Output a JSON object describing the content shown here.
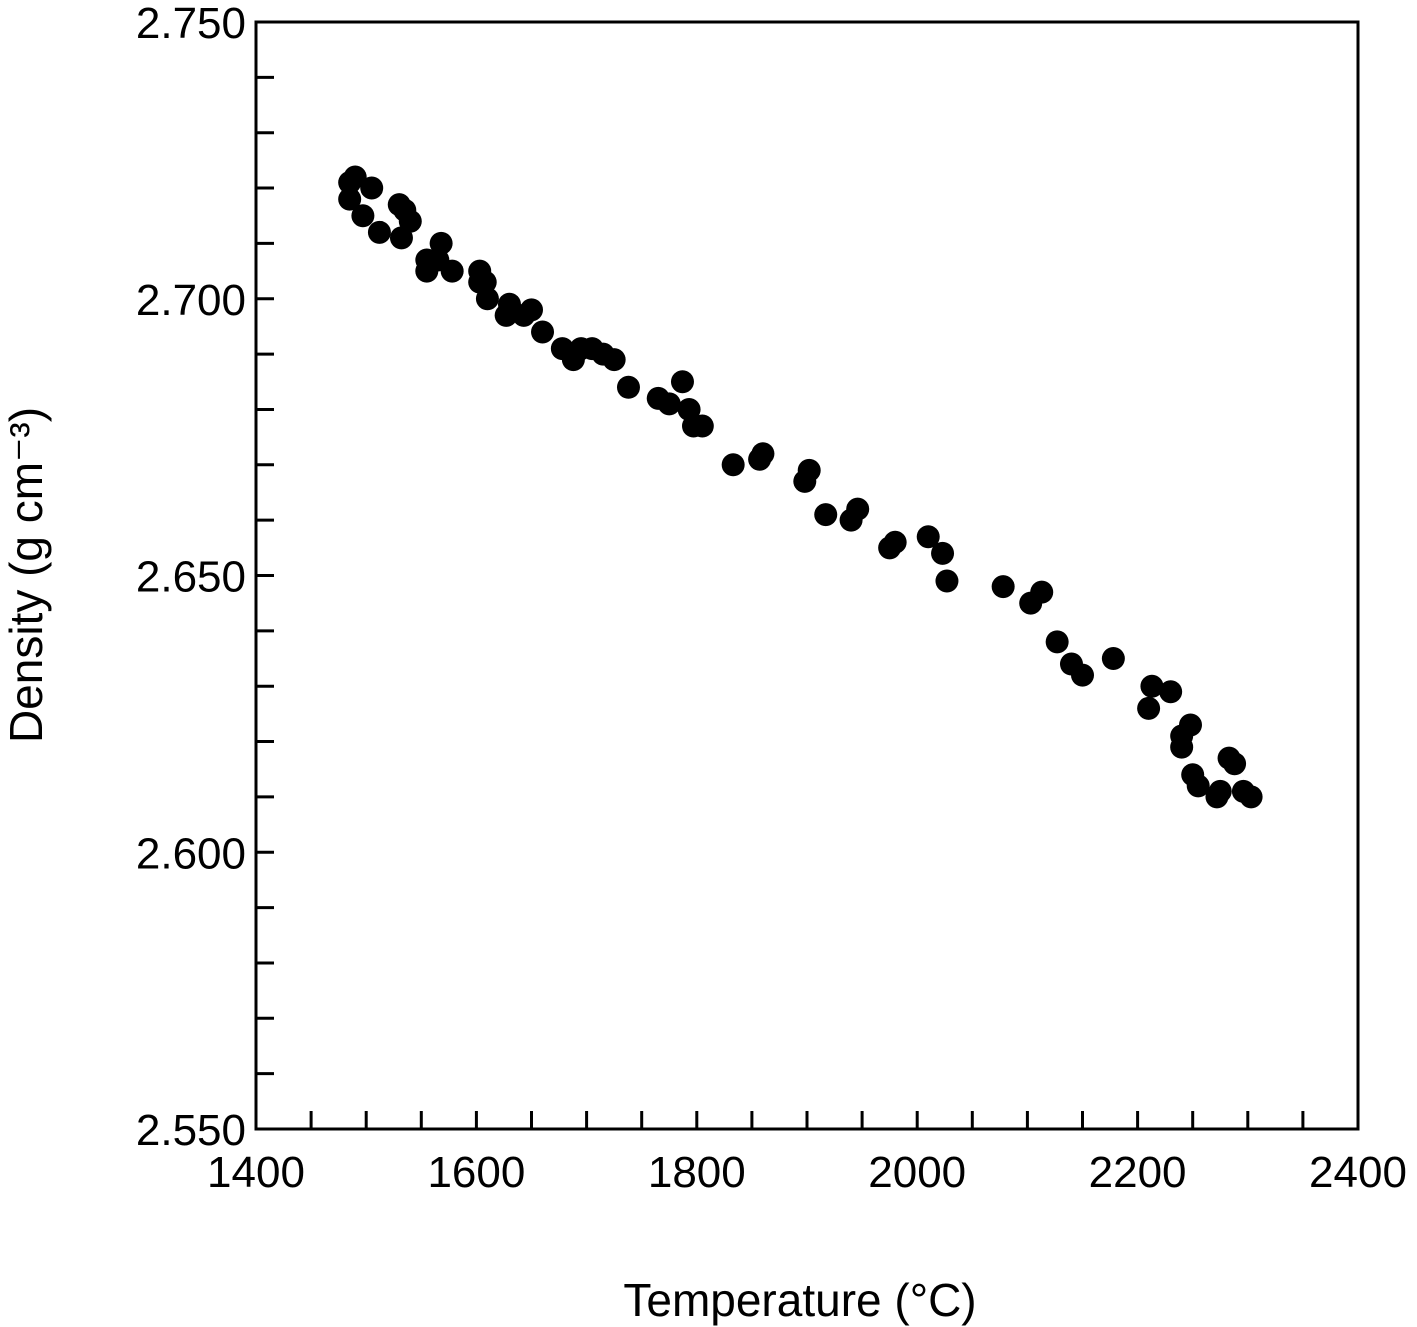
{
  "chart_data": {
    "type": "scatter",
    "xlabel": "Temperature (°C)",
    "ylabel": "Density (g cm⁻³)",
    "xlim": [
      1400,
      2400
    ],
    "ylim": [
      2.55,
      2.75
    ],
    "x_ticks": [
      1400,
      1600,
      1800,
      2000,
      2200,
      2400
    ],
    "x_tick_labels": [
      "1400",
      "1600",
      "1800",
      "2000",
      "2200",
      "2400"
    ],
    "y_ticks": [
      2.55,
      2.6,
      2.65,
      2.7,
      2.75
    ],
    "y_tick_labels": [
      "2.550",
      "2.600",
      "2.650",
      "2.700",
      "2.750"
    ],
    "x_minor_step": 50,
    "y_minor_step": 0.01,
    "grid": false,
    "marker_color": "#000000",
    "series": [
      {
        "points": [
          [
            1485,
            2.721
          ],
          [
            1490,
            2.722
          ],
          [
            1485,
            2.718
          ],
          [
            1497,
            2.715
          ],
          [
            1505,
            2.72
          ],
          [
            1512,
            2.712
          ],
          [
            1530,
            2.717
          ],
          [
            1535,
            2.716
          ],
          [
            1540,
            2.714
          ],
          [
            1532,
            2.711
          ],
          [
            1555,
            2.707
          ],
          [
            1555,
            2.705
          ],
          [
            1568,
            2.71
          ],
          [
            1565,
            2.707
          ],
          [
            1578,
            2.705
          ],
          [
            1603,
            2.705
          ],
          [
            1608,
            2.703
          ],
          [
            1603,
            2.703
          ],
          [
            1610,
            2.7
          ],
          [
            1630,
            2.699
          ],
          [
            1627,
            2.697
          ],
          [
            1643,
            2.697
          ],
          [
            1650,
            2.698
          ],
          [
            1660,
            2.694
          ],
          [
            1678,
            2.691
          ],
          [
            1688,
            2.689
          ],
          [
            1695,
            2.691
          ],
          [
            1705,
            2.691
          ],
          [
            1715,
            2.69
          ],
          [
            1725,
            2.689
          ],
          [
            1738,
            2.684
          ],
          [
            1765,
            2.682
          ],
          [
            1775,
            2.681
          ],
          [
            1787,
            2.685
          ],
          [
            1793,
            2.68
          ],
          [
            1797,
            2.677
          ],
          [
            1805,
            2.677
          ],
          [
            1833,
            2.67
          ],
          [
            1857,
            2.671
          ],
          [
            1860,
            2.672
          ],
          [
            1898,
            2.667
          ],
          [
            1902,
            2.669
          ],
          [
            1917,
            2.661
          ],
          [
            1940,
            2.66
          ],
          [
            1946,
            2.662
          ],
          [
            1975,
            2.655
          ],
          [
            1980,
            2.656
          ],
          [
            2010,
            2.657
          ],
          [
            2023,
            2.654
          ],
          [
            2027,
            2.649
          ],
          [
            2078,
            2.648
          ],
          [
            2103,
            2.645
          ],
          [
            2113,
            2.647
          ],
          [
            2127,
            2.638
          ],
          [
            2140,
            2.634
          ],
          [
            2150,
            2.632
          ],
          [
            2178,
            2.635
          ],
          [
            2210,
            2.626
          ],
          [
            2213,
            2.63
          ],
          [
            2230,
            2.629
          ],
          [
            2240,
            2.621
          ],
          [
            2240,
            2.619
          ],
          [
            2248,
            2.623
          ],
          [
            2250,
            2.614
          ],
          [
            2255,
            2.612
          ],
          [
            2272,
            2.61
          ],
          [
            2275,
            2.611
          ],
          [
            2283,
            2.617
          ],
          [
            2288,
            2.616
          ],
          [
            2296,
            2.611
          ],
          [
            2303,
            2.61
          ]
        ]
      }
    ]
  }
}
